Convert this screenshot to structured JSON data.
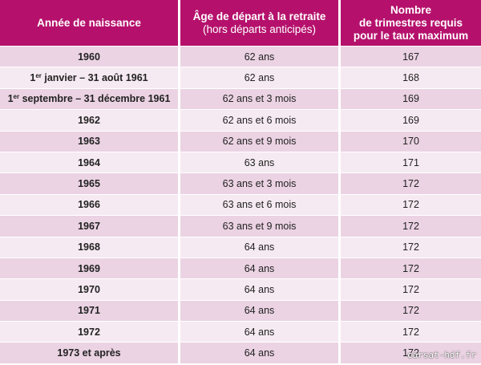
{
  "headers": {
    "col1": "Année de naissance",
    "col2_line1": "Âge de départ à la retraite",
    "col2_line2": "(hors départs anticipés)",
    "col3_line1": "Nombre",
    "col3_line2": "de trimestres requis",
    "col3_line3": "pour le taux maximum"
  },
  "rows": [
    {
      "year": "1960",
      "age": "62 ans",
      "quarters": "167"
    },
    {
      "year_sup_prefix": "1",
      "year_sup": "er",
      "year_rest": " janvier – 31 août 1961",
      "age": "62 ans",
      "quarters": "168"
    },
    {
      "year_sup_prefix": "1",
      "year_sup": "er",
      "year_rest": " septembre – 31 décembre 1961",
      "age": "62 ans et 3 mois",
      "quarters": "169"
    },
    {
      "year": "1962",
      "age": "62 ans et 6 mois",
      "quarters": "169"
    },
    {
      "year": "1963",
      "age": "62 ans et 9 mois",
      "quarters": "170"
    },
    {
      "year": "1964",
      "age": "63 ans",
      "quarters": "171"
    },
    {
      "year": "1965",
      "age": "63 ans et 3 mois",
      "quarters": "172"
    },
    {
      "year": "1966",
      "age": "63 ans et 6 mois",
      "quarters": "172"
    },
    {
      "year": "1967",
      "age": "63 ans et 9 mois",
      "quarters": "172"
    },
    {
      "year": "1968",
      "age": "64 ans",
      "quarters": "172"
    },
    {
      "year": "1969",
      "age": "64 ans",
      "quarters": "172"
    },
    {
      "year": "1970",
      "age": "64 ans",
      "quarters": "172"
    },
    {
      "year": "1971",
      "age": "64 ans",
      "quarters": "172"
    },
    {
      "year": "1972",
      "age": "64 ans",
      "quarters": "172"
    },
    {
      "year": "1973 et après",
      "age": "64 ans",
      "quarters": "172"
    }
  ],
  "watermark": "carsat-hdf.fr",
  "colors": {
    "header_bg": "#b5116c",
    "row_dark": "#ebd3e3",
    "row_light": "#f6eaf2"
  }
}
